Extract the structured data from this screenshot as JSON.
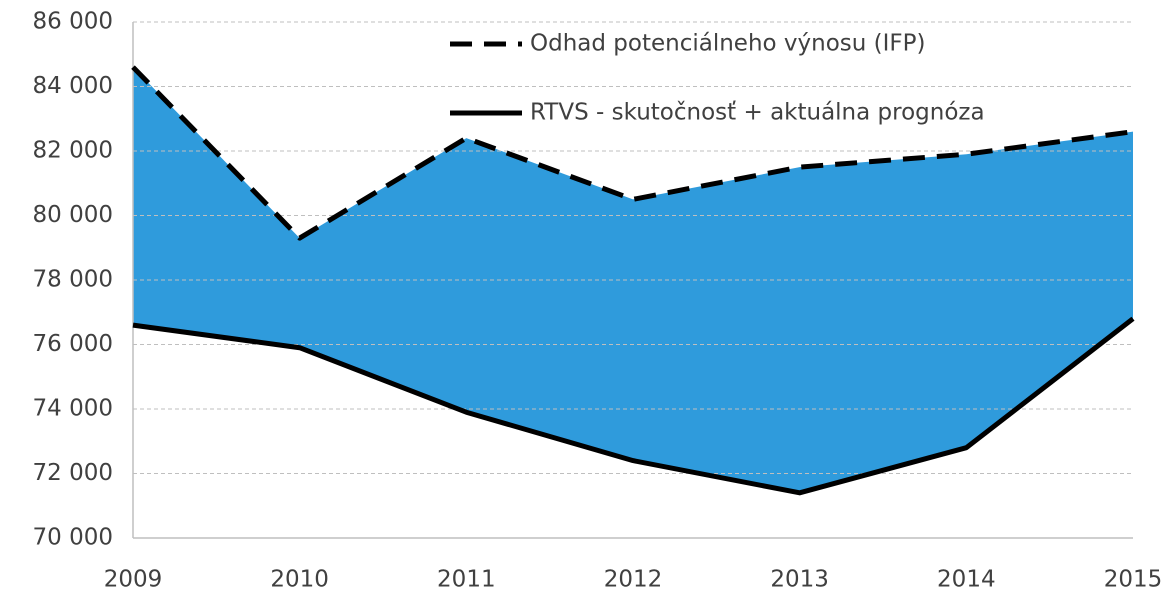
{
  "chart_data": {
    "type": "line",
    "categories": [
      "2009",
      "2010",
      "2011",
      "2012",
      "2013",
      "2014",
      "2015"
    ],
    "series": [
      {
        "name": "Odhad potenciálneho výnosu (IFP)",
        "color": "#000000",
        "dash": true,
        "values": [
          84600,
          79300,
          82400,
          80500,
          81500,
          81900,
          82600
        ]
      },
      {
        "name": "RTVS - skutočnosť + aktuálna prognóza",
        "color": "#000000",
        "dash": false,
        "values": [
          76600,
          75900,
          73900,
          72400,
          71400,
          72800,
          76800
        ]
      }
    ],
    "area_fill": "#2f9bdc",
    "ylim": [
      70000,
      86000
    ],
    "yticks": [
      {
        "value": 70000,
        "label": "70 000"
      },
      {
        "value": 72000,
        "label": "72 000"
      },
      {
        "value": 74000,
        "label": "74 000"
      },
      {
        "value": 76000,
        "label": "76 000"
      },
      {
        "value": 78000,
        "label": "78 000"
      },
      {
        "value": 80000,
        "label": "80 000"
      },
      {
        "value": 82000,
        "label": "82 000"
      },
      {
        "value": 84000,
        "label": "84 000"
      },
      {
        "value": 86000,
        "label": "86 000"
      }
    ],
    "grid": true,
    "legend": "top-right"
  }
}
